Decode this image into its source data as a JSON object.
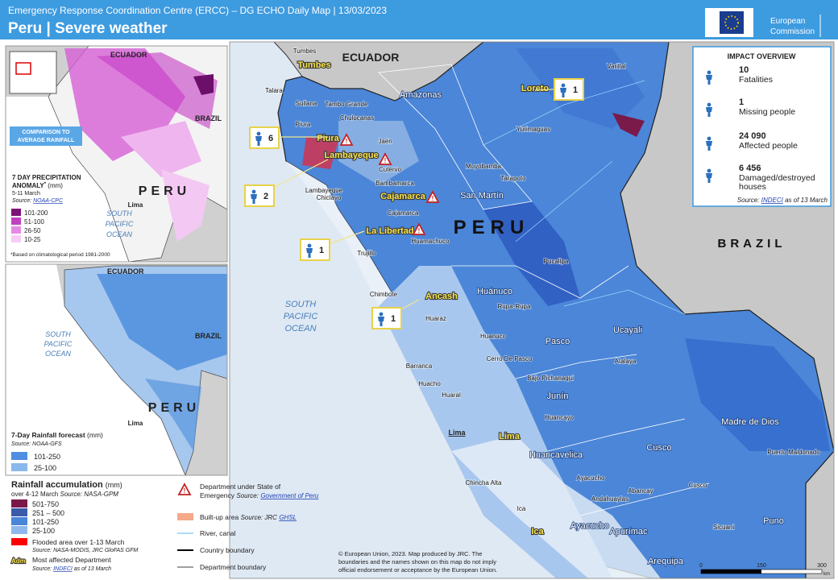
{
  "header": {
    "agency": "Emergency Response Coordination Centre (ERCC) – DG ECHO Daily Map | 13/03/2023",
    "title": "Peru | Severe weather",
    "logo_lines": [
      "European",
      "Commission"
    ]
  },
  "impact_overview": {
    "title": "IMPACT OVERVIEW",
    "items": [
      {
        "value": "10",
        "label_lines": [
          "Fatalities"
        ]
      },
      {
        "value": "1",
        "label_lines": [
          "Missing people"
        ]
      },
      {
        "value": "24 090",
        "label_lines": [
          "Affected people"
        ]
      },
      {
        "value": "6 456",
        "label_lines": [
          "Damaged/destroyed",
          "houses"
        ]
      }
    ],
    "source_prefix": "Source:",
    "source_link": "INDECI",
    "source_suffix": "as of 13 March"
  },
  "main_map": {
    "countries": [
      "ECUADOR",
      "PERU",
      "BRAZIL"
    ],
    "ocean_lines": [
      "SOUTH",
      "PACIFIC",
      "OCEAN"
    ],
    "affected_departments": [
      "Tumbes",
      "Piura",
      "Lambayeque",
      "Cajamarca",
      "La Libertad",
      "Ancash",
      "Lima",
      "Ica",
      "Loreto"
    ],
    "departments": [
      "Amazonas",
      "San Martín",
      "Huánuco",
      "Pasco",
      "Junín",
      "Ucayali",
      "Madre de Dios",
      "Cusco",
      "Huancavelica",
      "Ayacucho",
      "Apurímac",
      "Puno",
      "Arequipa"
    ],
    "cities": [
      "Tumbes",
      "Talara",
      "Sullana",
      "Tambo Grande",
      "Chulucanas",
      "Piura",
      "Jaén",
      "Lambayeque",
      "Chiclayo",
      "Cutervo",
      "Bambamarca",
      "Cajamarca",
      "Huamachuco",
      "Trujillo",
      "Chimbote",
      "Huaraz",
      "Barranca",
      "Huacho",
      "Huaral",
      "Chincha Alta",
      "Ica",
      "Moyobamba",
      "Tarapoto",
      "Yurimaguas",
      "Varillal",
      "Pucallpa",
      "Huanuco",
      "Rupa-Rupa",
      "Cerro De Pasco",
      "Bajo Pichanaqui",
      "Atalaya",
      "Huancayo",
      "Ayacucho",
      "Andahuaylas",
      "Abancay",
      "Cusco",
      "Sicuani",
      "Puerto Maldonado"
    ],
    "capital": "Lima",
    "callouts": [
      "6",
      "2",
      "1",
      "1",
      "1"
    ]
  },
  "inset_anomaly": {
    "countries": [
      "ECUADOR",
      "BRAZIL",
      "PERU"
    ],
    "ocean_lines": [
      "SOUTH",
      "PACIFIC",
      "OCEAN"
    ],
    "capital": "Lima",
    "badge_lines": [
      "COMPARISON TO",
      "AVERAGE RAINFALL"
    ],
    "title": "7 DAY PRECIPITATION",
    "title_2": "ANOMALY",
    "title_mark": "*",
    "unit": "(mm)",
    "period": "5-11 March",
    "source_prefix": "Source:",
    "source_link": "NOAA-CPC",
    "classes": [
      "101-200",
      "51-100",
      "26-50",
      "10-25"
    ],
    "note": "*Based on climatological period 1981-2000"
  },
  "inset_forecast": {
    "countries": [
      "ECUADOR",
      "BRAZIL",
      "PERU"
    ],
    "ocean_lines": [
      "SOUTH",
      "PACIFIC",
      "OCEAN"
    ],
    "capital": "Lima",
    "title": "7-Day Rainfall forecast",
    "unit": "(mm)",
    "source": "Source: NOAA-GFS",
    "classes": [
      "101-250",
      "25-100"
    ]
  },
  "legend": {
    "title": "Rainfall accumulation",
    "unit": "(mm)",
    "period": "over 4-12 March",
    "period_source": "Source: NASA-GPM",
    "classes": [
      "501-750",
      "251 – 500",
      "101-250",
      "25-100"
    ],
    "flood": "Flooded area over 1-13 March",
    "flood_source": "Source: NASA-MODIS, JRC GloFAS GFM",
    "affected_sample": "Adm",
    "affected": "Most affected Department",
    "affected_source_prefix": "Source:",
    "affected_source_link": "INDECI",
    "affected_source_suffix": "as of 13 March",
    "emergency_lines": [
      "Department under State of",
      "Emergency"
    ],
    "emergency_source_prefix": "Source:",
    "emergency_source_link": "Government of Peru",
    "builtup": "Built-up area",
    "builtup_source_prefix": "Source: JRC",
    "builtup_source_link": "GHSL",
    "river": "River, canal",
    "country_boundary": "Country boundary",
    "department_boundary": "Department boundary"
  },
  "footer": {
    "lines": [
      "© European Union, 2023. Map produced by JRC. The",
      "boundaries and the names shown on this map do not imply",
      "official endorsement or acceptance by the European Union."
    ],
    "scale": [
      "0",
      "150",
      "300",
      "km"
    ]
  }
}
